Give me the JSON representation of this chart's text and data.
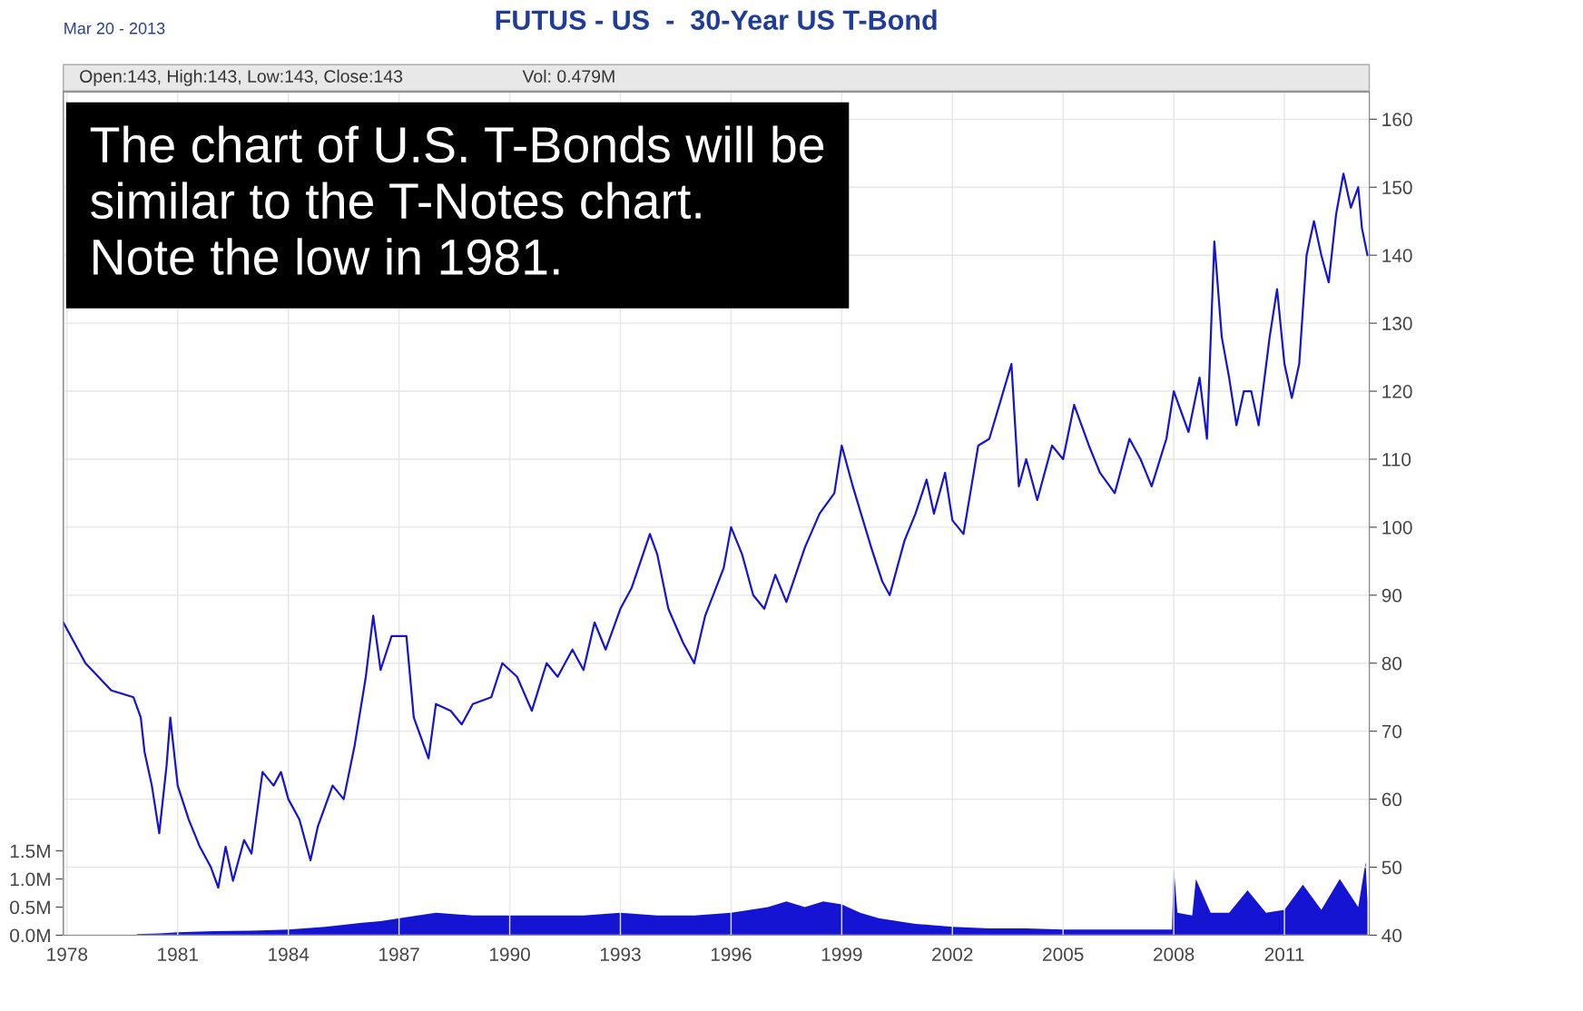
{
  "chart_data": {
    "type": "line",
    "title": "FUTUS - US  -  30-Year US T-Bond",
    "annotations": [
      "Mar 20 - 2013",
      "Open:143, High:143, Low:143, Close:143",
      "Vol: 0.479M",
      "The chart of U.S. T-Bonds will be\nsimilar to the T-Notes chart.\nNote the low in 1981."
    ],
    "xlim": [
      1977.9,
      2013.3
    ],
    "xticks": [
      1978,
      1981,
      1984,
      1987,
      1990,
      1993,
      1996,
      1999,
      2002,
      2005,
      2008,
      2011
    ],
    "ylim": [
      40,
      164
    ],
    "yticks": [
      40,
      50,
      60,
      70,
      80,
      90,
      100,
      110,
      120,
      130,
      140,
      150,
      160
    ],
    "y2lim": [
      0,
      15
    ],
    "y2ticks": [
      {
        "value": 0,
        "label": "0.0M"
      },
      {
        "value": 0.5,
        "label": "0.5M"
      },
      {
        "value": 1.0,
        "label": "1.0M"
      },
      {
        "value": 1.5,
        "label": "1.5M"
      }
    ],
    "grid": true,
    "series": [
      {
        "color": "#1414d2",
        "x": [
          1977.9,
          1978.5,
          1979.2,
          1979.8,
          1980.0,
          1980.1,
          1980.3,
          1980.5,
          1980.7,
          1980.8,
          1981.0,
          1981.3,
          1981.6,
          1981.9,
          1982.1,
          1982.3,
          1982.5,
          1982.8,
          1983.0,
          1983.3,
          1983.6,
          1983.8,
          1984.0,
          1984.3,
          1984.6,
          1984.8,
          1985.2,
          1985.5,
          1985.8,
          1986.1,
          1986.3,
          1986.5,
          1986.8,
          1987.2,
          1987.4,
          1987.8,
          1988.0,
          1988.4,
          1988.7,
          1989.0,
          1989.5,
          1989.8,
          1990.2,
          1990.6,
          1991.0,
          1991.3,
          1991.7,
          1992.0,
          1992.3,
          1992.6,
          1993.0,
          1993.3,
          1993.8,
          1994.0,
          1994.3,
          1994.7,
          1995.0,
          1995.3,
          1995.8,
          1996.0,
          1996.3,
          1996.6,
          1996.9,
          1997.2,
          1997.5,
          1998.0,
          1998.4,
          1998.8,
          1999.0,
          1999.3,
          1999.8,
          2000.1,
          2000.3,
          2000.7,
          2001.0,
          2001.3,
          2001.5,
          2001.8,
          2002.0,
          2002.3,
          2002.7,
          2003.0,
          2003.6,
          2003.8,
          2004.0,
          2004.3,
          2004.7,
          2005.0,
          2005.3,
          2005.7,
          2006.0,
          2006.4,
          2006.8,
          2007.1,
          2007.4,
          2007.8,
          2008.0,
          2008.4,
          2008.7,
          2008.9,
          2009.1,
          2009.3,
          2009.5,
          2009.7,
          2009.9,
          2010.1,
          2010.3,
          2010.6,
          2010.8,
          2011.0,
          2011.2,
          2011.4,
          2011.6,
          2011.8,
          2012.0,
          2012.2,
          2012.4,
          2012.6,
          2012.8,
          2013.0,
          2013.1,
          2013.25
        ],
        "values": [
          86,
          80,
          76,
          75,
          72,
          67,
          62,
          55,
          65,
          72,
          62,
          57,
          53,
          50,
          47,
          53,
          48,
          54,
          52,
          64,
          62,
          64,
          60,
          57,
          51,
          56,
          62,
          60,
          68,
          78,
          87,
          79,
          84,
          84,
          72,
          66,
          74,
          73,
          71,
          74,
          75,
          80,
          78,
          73,
          80,
          78,
          82,
          79,
          86,
          82,
          88,
          91,
          99,
          96,
          88,
          83,
          80,
          87,
          94,
          100,
          96,
          90,
          88,
          93,
          89,
          97,
          102,
          105,
          112,
          106,
          97,
          92,
          90,
          98,
          102,
          107,
          102,
          108,
          101,
          99,
          112,
          113,
          124,
          106,
          110,
          104,
          112,
          110,
          118,
          112,
          108,
          105,
          113,
          110,
          106,
          113,
          120,
          114,
          122,
          113,
          142,
          128,
          122,
          115,
          120,
          120,
          115,
          128,
          135,
          124,
          119,
          124,
          140,
          145,
          140,
          136,
          146,
          152,
          147,
          150,
          144,
          140
        ]
      },
      {
        "type": "area",
        "axis": "y2",
        "color": "#1414d2",
        "x": [
          1979.9,
          1980.5,
          1981.0,
          1982.0,
          1983.0,
          1984.0,
          1985.0,
          1986.0,
          1986.5,
          1987.5,
          1988.0,
          1989.0,
          1990.0,
          1991.0,
          1992.0,
          1993.0,
          1994.0,
          1995.0,
          1996.0,
          1997.0,
          1997.5,
          1998.0,
          1998.5,
          1999.0,
          1999.5,
          2000.0,
          2001.0,
          2002.0,
          2003.0,
          2004.0,
          2005.0,
          2006.0,
          2007.0,
          2007.95,
          2008.0,
          2008.1,
          2008.5,
          2008.6,
          2009.0,
          2009.5,
          2010.0,
          2010.5,
          2011.0,
          2011.5,
          2012.0,
          2012.5,
          2013.0,
          2013.2,
          2013.25
        ],
        "values": [
          0.02,
          0.03,
          0.05,
          0.07,
          0.08,
          0.1,
          0.15,
          0.22,
          0.25,
          0.35,
          0.4,
          0.35,
          0.35,
          0.35,
          0.35,
          0.4,
          0.35,
          0.35,
          0.4,
          0.5,
          0.6,
          0.5,
          0.6,
          0.55,
          0.4,
          0.3,
          0.2,
          0.15,
          0.12,
          0.12,
          0.1,
          0.1,
          0.1,
          0.1,
          1.2,
          0.4,
          0.35,
          1.0,
          0.4,
          0.4,
          0.8,
          0.4,
          0.45,
          0.9,
          0.45,
          1.0,
          0.5,
          1.3,
          0.6
        ]
      }
    ]
  }
}
